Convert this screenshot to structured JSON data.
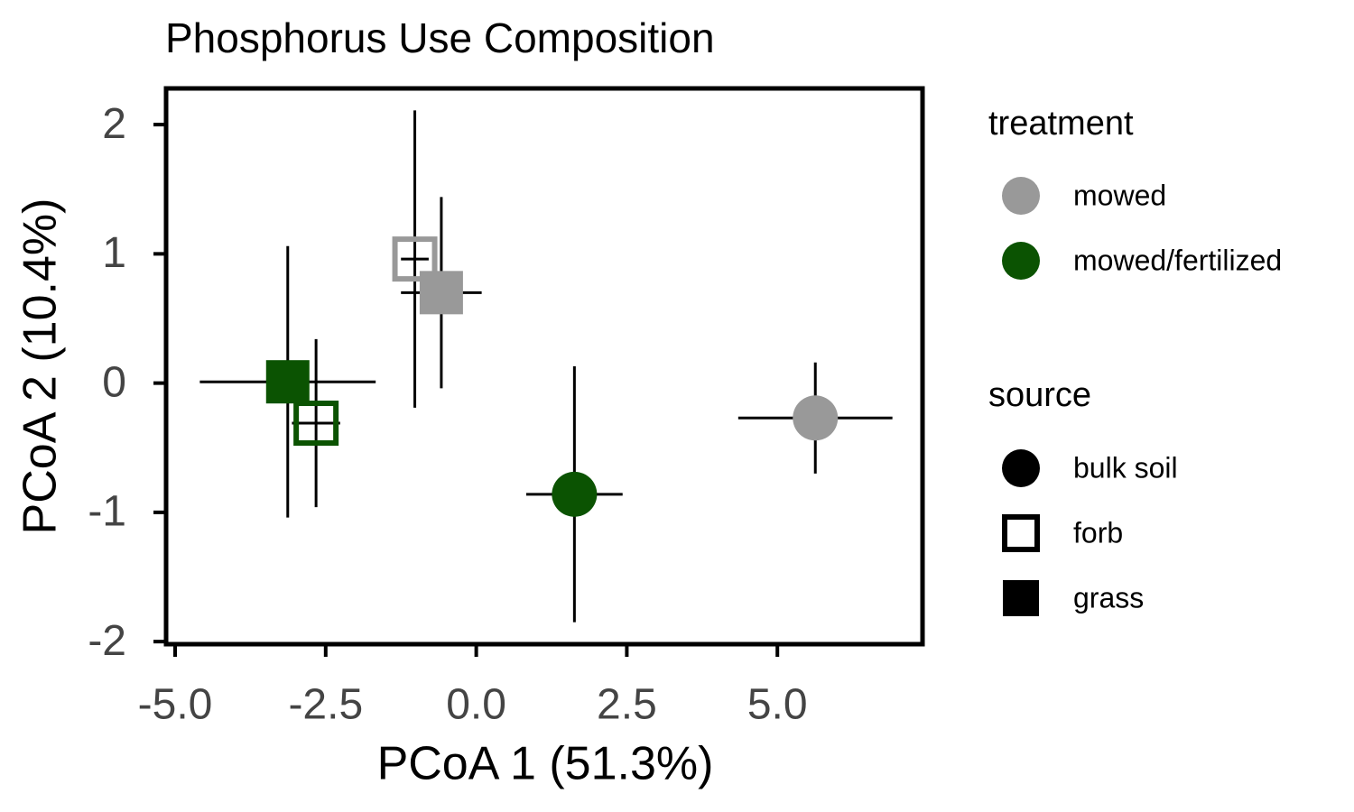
{
  "chart_data": {
    "type": "scatter",
    "title": "Phosphorus Use Composition",
    "x_label": "PCoA 1 (51.3%)",
    "y_label": "PCoA 2 (10.4%)",
    "xlim": [
      -5.15,
      7.41
    ],
    "ylim": [
      -2.02,
      2.28
    ],
    "xticks": [
      {
        "value": -5,
        "label": "-5.0"
      },
      -2.5,
      {
        "value": 0,
        "label": "0.0"
      },
      2.5,
      {
        "value": 5,
        "label": "5.0"
      }
    ],
    "yticks": [
      -2,
      -1,
      0,
      1,
      2
    ],
    "grid": false,
    "series": [
      {
        "name": "mowed",
        "color": "#999999",
        "source": [
          "bulk soil",
          "forb",
          "grass"
        ],
        "x": [
          5.63,
          -1.02,
          -0.58
        ],
        "y": [
          -0.27,
          0.96,
          0.7
        ],
        "xerr": [
          1.28,
          0.23,
          0.67
        ],
        "yerr": [
          0.43,
          1.15,
          0.74
        ]
      },
      {
        "name": "mowed/fertilized",
        "color": "#0b5302",
        "source": [
          "bulk soil",
          "forb",
          "grass"
        ],
        "x": [
          1.63,
          -2.66,
          -3.13
        ],
        "y": [
          -0.86,
          -0.31,
          0.01
        ],
        "xerr": [
          0.8,
          0.4,
          1.46
        ],
        "yerr": [
          0.99,
          0.65,
          1.05
        ]
      }
    ],
    "legend": {
      "treatment_title": "treatment",
      "source_title": "source",
      "sources": [
        {
          "name": "bulk soil",
          "shape": "circle"
        },
        {
          "name": "forb",
          "shape": "open-square"
        },
        {
          "name": "grass",
          "shape": "square"
        }
      ]
    }
  }
}
